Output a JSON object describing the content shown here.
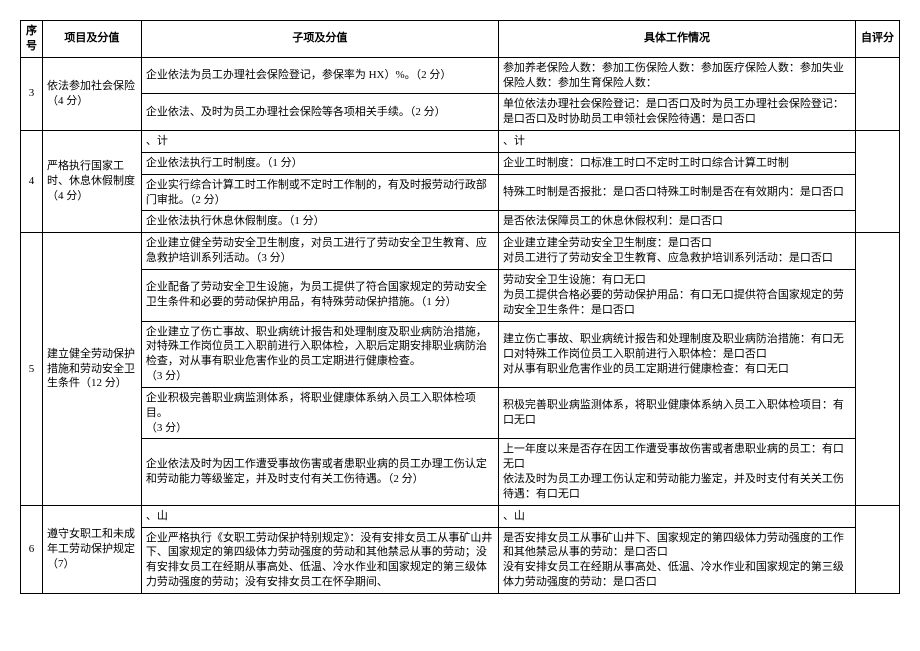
{
  "headers": {
    "seq": "序号",
    "project": "项目及分值",
    "sub": "子项及分值",
    "detail": "具体工作情况",
    "score": "自评分"
  },
  "rows": [
    {
      "seq": "3",
      "project": "依法参加社会保险（4 分）",
      "subs": [
        {
          "sub": "企业依法为员工办理社会保险登记，参保率为 HX）%。（2 分）",
          "detail": "参加养老保险人数：参加工伤保险人数：参加医疗保险人数：参加失业保险人数：参加生育保险人数："
        },
        {
          "sub": "企业依法、及时为员工办理社会保险等各项相关手续。（2 分）",
          "detail": "单位依法办理社会保险登记：是口否口及时为员工办理社会保险登记：是口否口及时协助员工申领社会保险待遇：是口否口"
        }
      ]
    },
    {
      "seq": "4",
      "project": "严格执行国家工时、休息休假制度（4 分）",
      "subs": [
        {
          "sub": "、计",
          "detail": "、计",
          "merge": true
        },
        {
          "sub": "企业依法执行工时制度。（1 分）",
          "detail": "企业工时制度：口标准工时口不定时工时口综合计算工时制"
        },
        {
          "sub": "企业实行综合计算工时工作制或不定时工作制的，有及时报劳动行政部门审批。（2 分）",
          "detail": "特殊工时制是否报批：是口否口特殊工时制是否在有效期内：是口否口"
        },
        {
          "sub": "企业依法执行休息休假制度。（1 分）",
          "detail": "是否依法保障员工的休息休假权利：是口否口"
        }
      ]
    },
    {
      "seq": "5",
      "project": "建立健全劳动保护措施和劳动安全卫生条件（12 分）",
      "subs": [
        {
          "sub": "企业建立健全劳动安全卫生制度，对员工进行了劳动安全卫生教育、应急救护培训系列活动。（3 分）",
          "detail": "企业建立建全劳动安全卫生制度：是口否口\n对员工进行了劳动安全卫生教育、应急救护培训系列活动：是口否口"
        },
        {
          "sub": "企业配备了劳动安全卫生设施，为员工提供了符合国家规定的劳动安全卫生条件和必要的劳动保护用品，有特殊劳动保护措施。（1 分）",
          "detail": "劳动安全卫生设施：有口无口\n为员工提供合格必要的劳动保护用品：有口无口提供符合国家规定的劳动安全卫生条件：是口否口"
        },
        {
          "sub": "企业建立了伤亡事故、职业病统计报告和处理制度及职业病防治措施，对特殊工作岗位员工入职前进行入职体检，入职后定期安排职业病防治检查，对从事有职业危害作业的员工定期进行健康检查。\n（3 分）",
          "detail": "建立伤亡事故、职业病统计报告和处理制度及职业病防治措施：有口无口对特殊工作岗位员工入职前进行入职体检：是口否口\n对从事有职业危害作业的员工定期进行健康检查：有口无口"
        },
        {
          "sub": "企业积极完善职业病监测体系，将职业健康体系纳入员工入职体检项目。\n（3 分）",
          "detail": "积极完善职业病监测体系，将职业健康体系纳入员工入职体检项目：有口无口"
        },
        {
          "sub": "企业依法及时为因工作遭受事故伤害或者患职业病的员工办理工伤认定和劳动能力等级鉴定，并及时支付有关工伤待遇。（2 分）",
          "detail": "上一年度以来是否存在因工作遭受事故伤害或者患职业病的员工：有口无口\n依法及时为员工办理工伤认定和劳动能力鉴定，并及时支付有关关工伤待遇：有口无口"
        }
      ]
    },
    {
      "seq": "6",
      "project": "遵守女职工和未成年工劳动保护规定（7）",
      "subs": [
        {
          "sub": "、山",
          "detail": "、山",
          "merge": true
        },
        {
          "sub": "企业严格执行《女职工劳动保护特别规定》：没有安排女员工从事矿山井下、国家规定的第四级体力劳动强度的劳动和其他禁忌从事的劳动；没有安排女员工在经期从事高处、低温、冷水作业和国家规定的第三级体力劳动强度的劳动；没有安排女员工在怀孕期间、",
          "detail": "是否安排女员工从事矿山井下、国家规定的第四级体力劳动强度的工作和其他禁忌从事的劳动：是口否口\n没有安排女员工在经期从事高处、低温、冷水作业和国家规定的第三级体力劳动强度的劳动：是口否口"
        }
      ]
    }
  ]
}
